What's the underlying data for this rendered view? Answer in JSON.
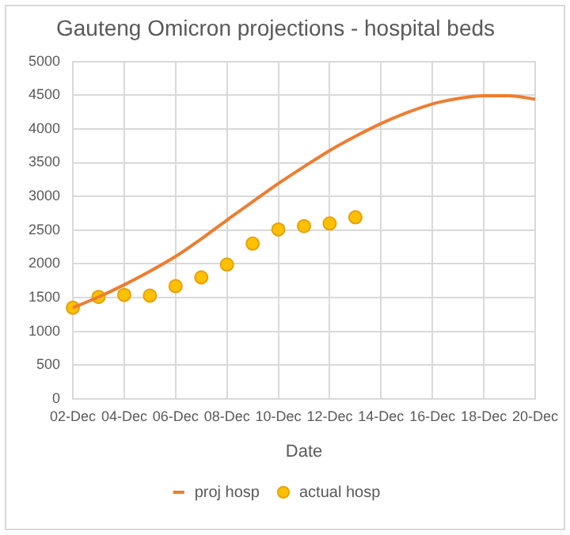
{
  "chart_data": {
    "type": "line",
    "title": "Gauteng Omicron projections - hospital beds",
    "xlabel": "Date",
    "categories": [
      "02-Dec",
      null,
      "04-Dec",
      null,
      "06-Dec",
      null,
      "08-Dec",
      null,
      "10-Dec",
      null,
      "12-Dec",
      null,
      "14-Dec",
      null,
      "16-Dec",
      null,
      "18-Dec",
      null,
      "20-Dec"
    ],
    "series": [
      {
        "name": "proj hosp",
        "type": "line",
        "color": "#ed7d31",
        "marker": "none",
        "values": [
          1350,
          1510,
          1690,
          1890,
          2110,
          2370,
          2650,
          2920,
          3190,
          3440,
          3680,
          3890,
          4080,
          4240,
          4370,
          4450,
          4490,
          4490,
          4440
        ]
      },
      {
        "name": "actual hosp",
        "type": "scatter",
        "color": "#ffc000",
        "marker": "circle",
        "values": [
          1350,
          1510,
          1540,
          1530,
          1670,
          1800,
          1990,
          2300,
          2510,
          2560,
          2600,
          2690,
          null,
          null,
          null,
          null,
          null,
          null,
          null
        ]
      }
    ],
    "ylim": [
      0,
      5000
    ],
    "yticks": [
      0,
      500,
      1000,
      1500,
      2000,
      2500,
      3000,
      3500,
      4000,
      4500,
      5000
    ],
    "grid": true,
    "legend": "bottom"
  }
}
